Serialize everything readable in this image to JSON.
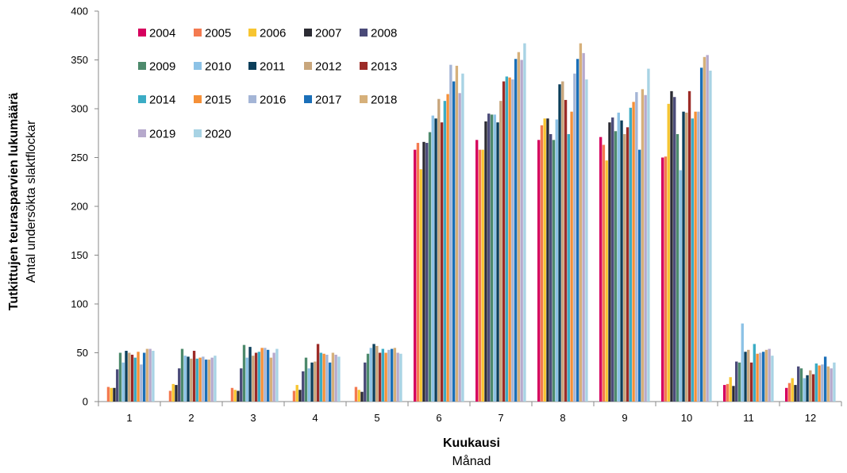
{
  "chart_data": {
    "type": "bar",
    "ylabel": "Tutkittujen teurasparvien lukumäärä",
    "ylabel_sub": "Antal undersökta slaktflockar",
    "xlabel": "Kuukausi",
    "xlabel_sub": "Månad",
    "ylim": [
      0,
      400
    ],
    "yticks": [
      0,
      50,
      100,
      150,
      200,
      250,
      300,
      350,
      400
    ],
    "grid": false,
    "legend_position": "top-left",
    "categories": [
      "1",
      "2",
      "3",
      "4",
      "5",
      "6",
      "7",
      "8",
      "9",
      "10",
      "11",
      "12"
    ],
    "series": [
      {
        "name": "2004",
        "color": "#d6005e",
        "values": [
          0,
          0,
          0,
          0,
          0,
          258,
          268,
          268,
          271,
          250,
          17,
          14
        ]
      },
      {
        "name": "2005",
        "color": "#f47a50",
        "values": [
          15,
          11,
          14,
          11,
          15,
          265,
          258,
          283,
          263,
          251,
          18,
          19
        ]
      },
      {
        "name": "2006",
        "color": "#f7c531",
        "values": [
          14,
          18,
          12,
          17,
          12,
          238,
          258,
          290,
          247,
          305,
          25,
          24
        ]
      },
      {
        "name": "2007",
        "color": "#2b2b33",
        "values": [
          14,
          17,
          11,
          12,
          10,
          266,
          287,
          290,
          286,
          318,
          16,
          17
        ]
      },
      {
        "name": "2008",
        "color": "#4a4a78",
        "values": [
          33,
          34,
          34,
          31,
          40,
          265,
          295,
          274,
          291,
          312,
          41,
          36
        ]
      },
      {
        "name": "2009",
        "color": "#4d8a6c",
        "values": [
          50,
          54,
          58,
          45,
          49,
          276,
          294,
          268,
          277,
          274,
          40,
          34
        ]
      },
      {
        "name": "2010",
        "color": "#8cc2e6",
        "values": [
          40,
          47,
          45,
          34,
          55,
          293,
          294,
          289,
          296,
          237,
          80,
          24
        ]
      },
      {
        "name": "2011",
        "color": "#0b3e5a",
        "values": [
          52,
          46,
          56,
          40,
          59,
          290,
          286,
          325,
          288,
          297,
          51,
          27
        ]
      },
      {
        "name": "2012",
        "color": "#c8a67c",
        "values": [
          50,
          44,
          47,
          41,
          57,
          310,
          308,
          328,
          274,
          296,
          53,
          32
        ]
      },
      {
        "name": "2013",
        "color": "#9c2b27",
        "values": [
          48,
          52,
          50,
          59,
          50,
          286,
          328,
          309,
          281,
          318,
          40,
          28
        ]
      },
      {
        "name": "2014",
        "color": "#3bacc5",
        "values": [
          45,
          44,
          51,
          50,
          54,
          308,
          333,
          274,
          301,
          290,
          59,
          39
        ]
      },
      {
        "name": "2015",
        "color": "#f59038",
        "values": [
          51,
          45,
          55,
          49,
          50,
          315,
          332,
          297,
          307,
          297,
          49,
          37
        ]
      },
      {
        "name": "2016",
        "color": "#a4b5d6",
        "values": [
          38,
          46,
          55,
          48,
          53,
          345,
          330,
          336,
          317,
          297,
          50,
          38
        ]
      },
      {
        "name": "2017",
        "color": "#1a6fb8",
        "values": [
          50,
          43,
          53,
          40,
          54,
          328,
          351,
          351,
          258,
          342,
          51,
          46
        ]
      },
      {
        "name": "2018",
        "color": "#d6b07a",
        "values": [
          54,
          43,
          45,
          50,
          55,
          344,
          358,
          367,
          320,
          353,
          53,
          36
        ]
      },
      {
        "name": "2019",
        "color": "#b6a9cc",
        "values": [
          54,
          45,
          50,
          48,
          50,
          316,
          350,
          357,
          314,
          355,
          54,
          34
        ]
      },
      {
        "name": "2020",
        "color": "#a8d3e4",
        "values": [
          52,
          47,
          54,
          46,
          49,
          336,
          367,
          330,
          341,
          339,
          47,
          40
        ]
      }
    ]
  }
}
